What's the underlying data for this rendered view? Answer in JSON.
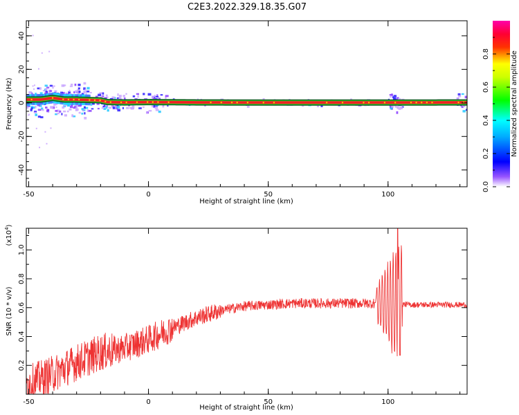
{
  "page_title": "C2E3.2022.329.18.35.G07",
  "colors": {
    "axis": "#000000",
    "snr_line": "#ee3333",
    "track": "#ee2222",
    "track_edge": "#0a5a1a"
  },
  "chart_data": [
    {
      "type": "heatmap",
      "title": "",
      "xlabel": "Height of straight line (km)",
      "ylabel": "Frequency (Hz)",
      "xlim": [
        -51,
        133
      ],
      "ylim": [
        -50,
        49
      ],
      "x_ticks": [
        -50,
        0,
        50,
        100
      ],
      "y_ticks": [
        -40,
        -20,
        0,
        20,
        40
      ],
      "colorbar": {
        "label": "Normalized spectral amplitude",
        "range": [
          0,
          1
        ],
        "ticks": [
          "0.0",
          "0.2",
          "0.4",
          "0.6",
          "0.8"
        ],
        "colormap": [
          "#ffffff",
          "#6600ff",
          "#0000ff",
          "#00ffff",
          "#00ff00",
          "#ffff00",
          "#ff0000",
          "#ff00aa"
        ]
      },
      "main_track": [
        {
          "x": -51,
          "y": 2
        },
        {
          "x": -45,
          "y": 2
        },
        {
          "x": -40,
          "y": 3
        },
        {
          "x": -35,
          "y": 2
        },
        {
          "x": -30,
          "y": 2
        },
        {
          "x": -20,
          "y": 1.5
        },
        {
          "x": -17,
          "y": 0.5
        },
        {
          "x": -10,
          "y": 0.3
        },
        {
          "x": 0,
          "y": 0.5
        },
        {
          "x": 20,
          "y": 0.3
        },
        {
          "x": 50,
          "y": 0.2
        },
        {
          "x": 100,
          "y": 0.2
        },
        {
          "x": 133,
          "y": 0.3
        }
      ]
    },
    {
      "type": "line",
      "title": "",
      "xlabel": "Height of straight line (km)",
      "ylabel": "SNR (10 * v/v)",
      "y_multiplier": "(x10",
      "y_multiplier_exp": "4",
      "y_multiplier_close": ")",
      "xlim": [
        -51,
        133
      ],
      "ylim": [
        0,
        1.15
      ],
      "x_ticks": [
        -50,
        0,
        50,
        100
      ],
      "y_ticks": [
        "0.2",
        "0.4",
        "0.6",
        "0.8",
        "1.0"
      ],
      "series": [
        {
          "trend": [
            {
              "x": -51,
              "y": 0.07
            },
            {
              "x": -40,
              "y": 0.14
            },
            {
              "x": -30,
              "y": 0.22
            },
            {
              "x": -20,
              "y": 0.29
            },
            {
              "x": -10,
              "y": 0.32
            },
            {
              "x": 0,
              "y": 0.38
            },
            {
              "x": 10,
              "y": 0.46
            },
            {
              "x": 20,
              "y": 0.53
            },
            {
              "x": 30,
              "y": 0.58
            },
            {
              "x": 40,
              "y": 0.61
            },
            {
              "x": 50,
              "y": 0.62
            },
            {
              "x": 60,
              "y": 0.63
            },
            {
              "x": 70,
              "y": 0.63
            },
            {
              "x": 80,
              "y": 0.63
            },
            {
              "x": 90,
              "y": 0.63
            },
            {
              "x": 100,
              "y": 0.63
            },
            {
              "x": 110,
              "y": 0.62
            },
            {
              "x": 133,
              "y": 0.62
            }
          ],
          "peak": {
            "x": 104,
            "y": 1.15
          },
          "trough": {
            "x": 105,
            "y": 0.27
          }
        }
      ]
    }
  ]
}
